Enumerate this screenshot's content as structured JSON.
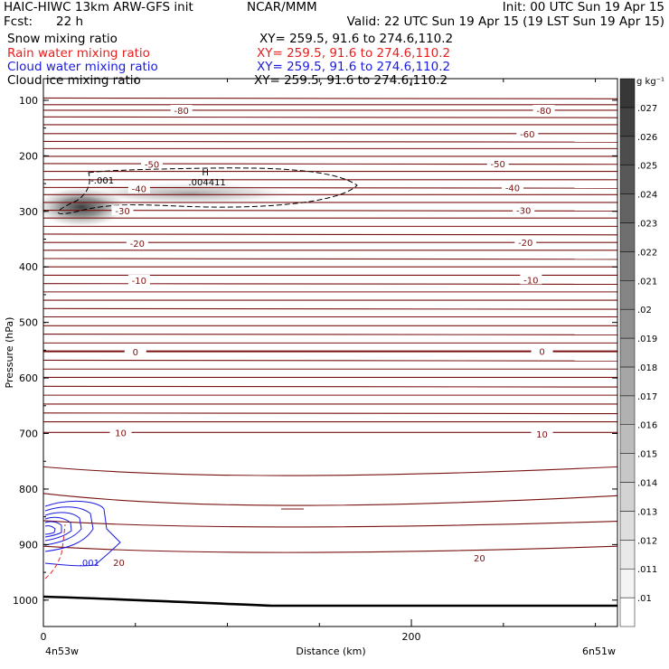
{
  "header": {
    "title": "HAIC-HIWC 13km ARW-GFS init",
    "org": "NCAR/MMM",
    "init": "Init: 00 UTC Sun 19 Apr 15",
    "fcst_label": "Fcst:",
    "fcst_value": "22 h",
    "valid": "Valid: 22 UTC Sun 19 Apr 15 (19 LST Sun 19 Apr 15)"
  },
  "fields": [
    {
      "name": "Snow mixing ratio",
      "xy": "XY= 259.5, 91.6 to 274.6,110.2",
      "color": "#000000"
    },
    {
      "name": "Rain water mixing ratio",
      "xy": "XY= 259.5, 91.6 to 274.6,110.2",
      "color": "#e8201e"
    },
    {
      "name": "Cloud water mixing ratio",
      "xy": "XY= 259.5, 91.6 to 274.6,110.2",
      "color": "#1a1ae0"
    },
    {
      "name": "Cloud ice mixing ratio",
      "xy": "XY= 259.5, 91.6 to 274.6,110.2",
      "color": "#000000"
    }
  ],
  "chart_data": {
    "type": "heatmap",
    "xlabel": "Distance (km)",
    "ylabel": "Pressure (hPa)",
    "x_ticks": [
      0,
      200
    ],
    "y_ticks": [
      100,
      200,
      300,
      400,
      500,
      600,
      700,
      800,
      900,
      1000
    ],
    "xlim": [
      0,
      312
    ],
    "ylim": [
      1037,
      63
    ],
    "endpoint_left": "4n53w",
    "endpoint_right": "6n51w",
    "colorbar": {
      "unit": "g kg⁻¹",
      "levels": [
        ".01",
        ".011",
        ".012",
        ".013",
        ".014",
        ".015",
        ".016",
        ".017",
        ".018",
        ".019",
        ".02",
        ".021",
        ".022",
        ".023",
        ".024",
        ".025",
        ".026",
        ".027"
      ]
    },
    "temperature_labels": [
      {
        "text": "-80",
        "x": 75,
        "p": 118
      },
      {
        "text": "-80",
        "x": 272,
        "p": 118
      },
      {
        "text": "-60",
        "x": 263,
        "p": 160
      },
      {
        "text": "-50",
        "x": 59,
        "p": 215
      },
      {
        "text": "-50",
        "x": 247,
        "p": 214
      },
      {
        "text": "-40",
        "x": 52,
        "p": 259
      },
      {
        "text": "-40",
        "x": 255,
        "p": 257
      },
      {
        "text": "-30",
        "x": 43,
        "p": 299
      },
      {
        "text": "-30",
        "x": 261,
        "p": 298
      },
      {
        "text": "-20",
        "x": 51,
        "p": 357
      },
      {
        "text": "-20",
        "x": 262,
        "p": 356
      },
      {
        "text": "-10",
        "x": 52,
        "p": 424
      },
      {
        "text": "-10",
        "x": 265,
        "p": 423
      },
      {
        "text": "0",
        "x": 50,
        "p": 553
      },
      {
        "text": "0",
        "x": 271,
        "p": 552
      },
      {
        "text": "10",
        "x": 42,
        "p": 698
      },
      {
        "text": "10",
        "x": 271,
        "p": 701
      },
      {
        "text": "20",
        "x": 41,
        "p": 932
      },
      {
        "text": "20",
        "x": 237,
        "p": 924
      }
    ],
    "shading_max": {
      "marker": "H",
      "value": ".004411",
      "x": 88,
      "p": 258
    },
    "ice_contour_label": {
      "text": "-.001",
      "x": 32,
      "p": 263
    },
    "cloud_water_label": {
      "text": ".001",
      "x": 25,
      "p": 932
    }
  }
}
